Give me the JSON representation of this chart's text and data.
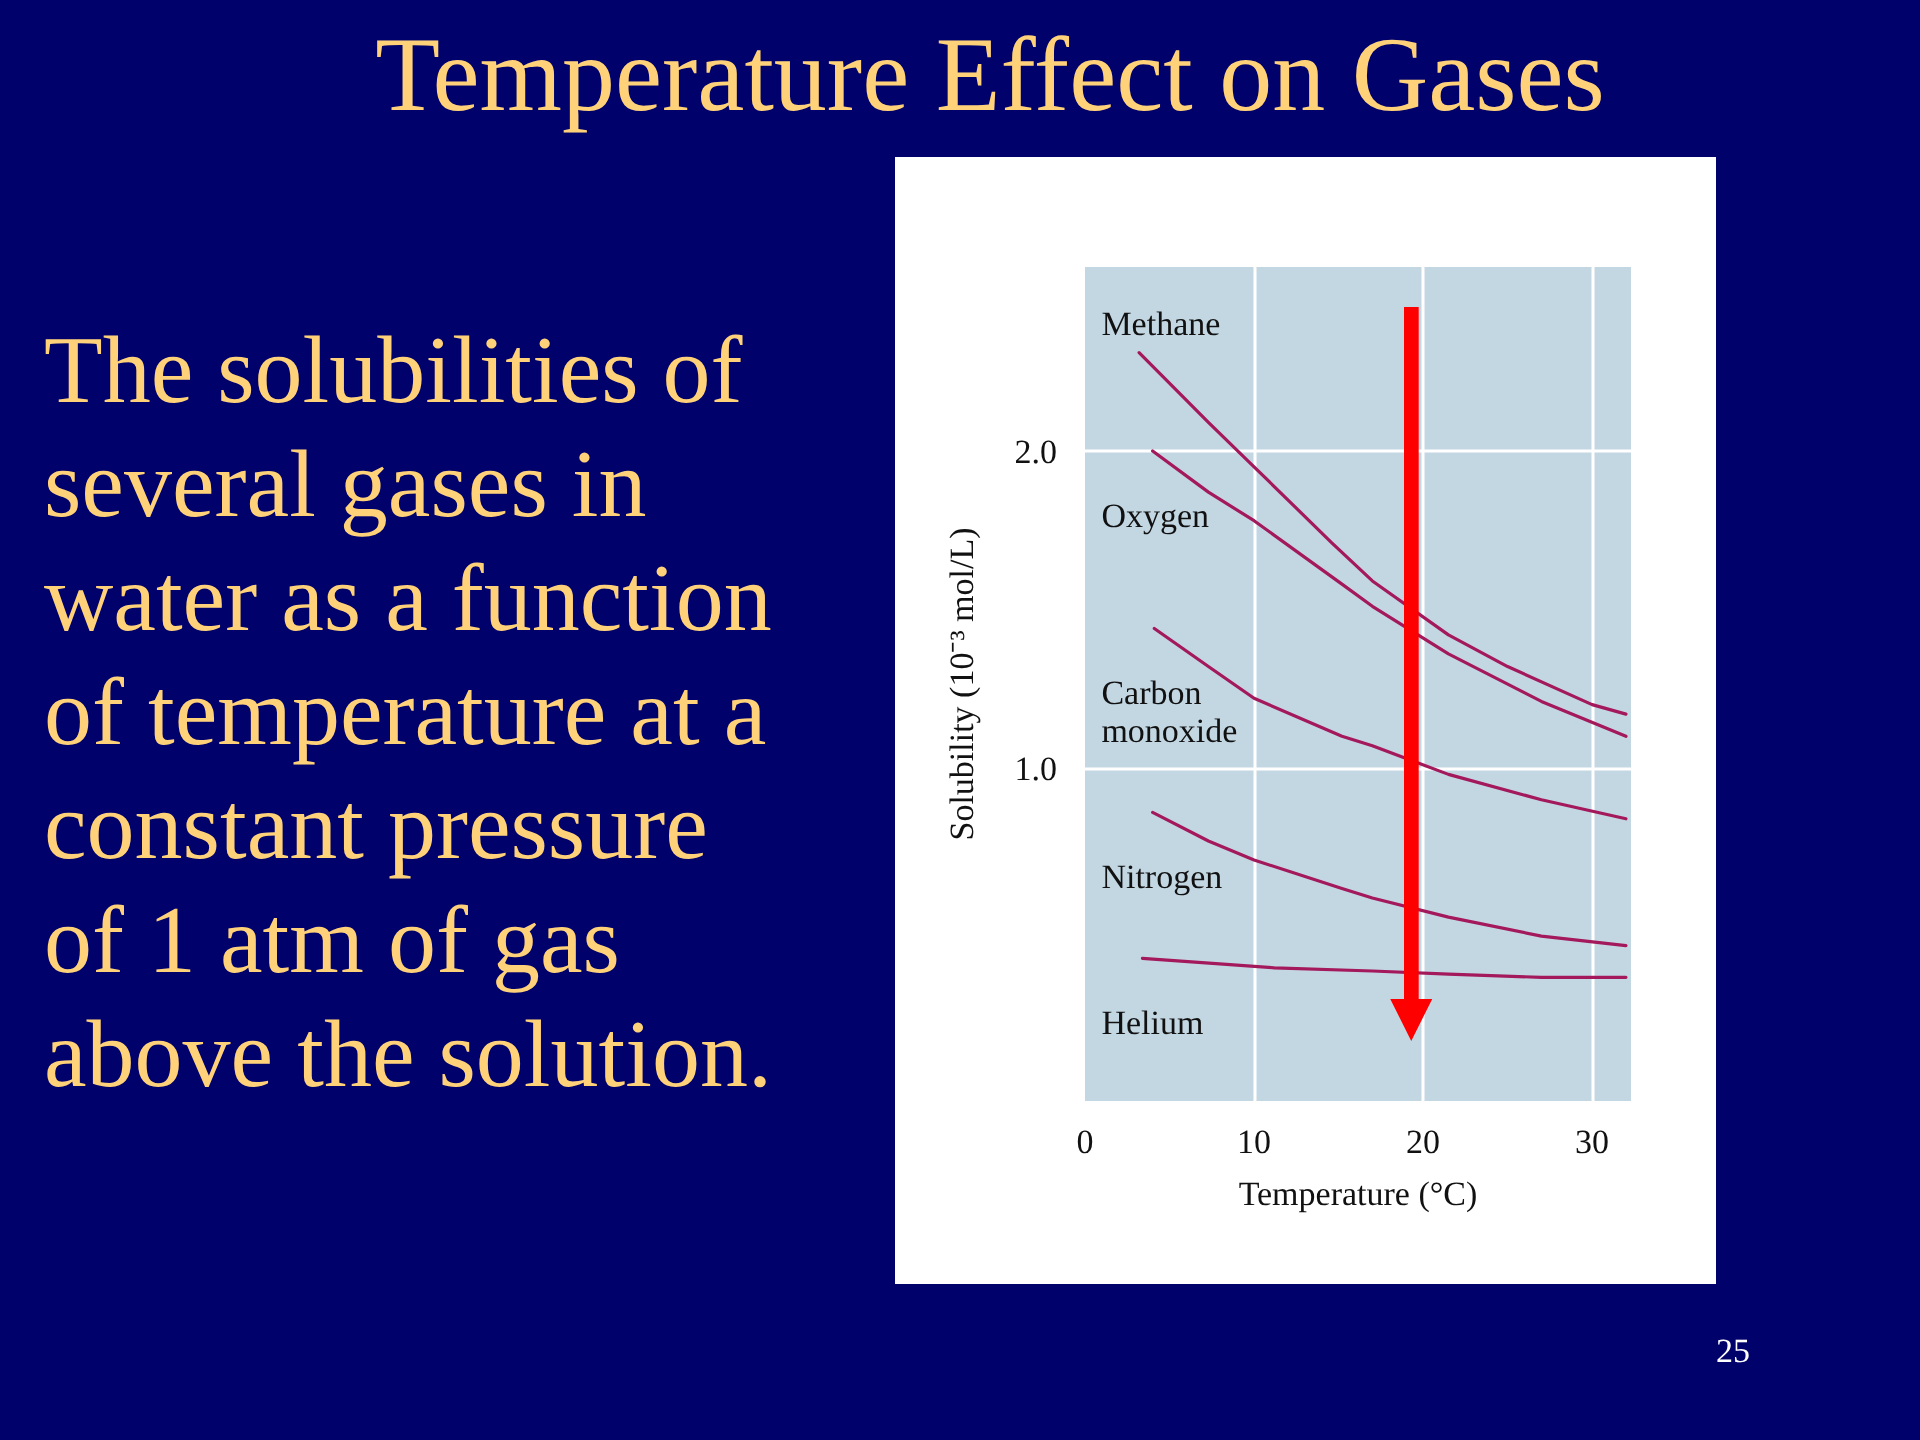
{
  "chart_data": {
    "type": "line",
    "title": "Temperature Effect on Gases",
    "xlabel": "Temperature (°C)",
    "ylabel": "Solubility (10⁻³ mol/L)",
    "annotations": [
      "The solubilities of several gases in water as a function of temperature at a constant pressure of 1 atm of gas above the solution.",
      "25"
    ],
    "xlim": [
      0,
      32.3
    ],
    "ylim": [
      -0.05,
      2.58
    ],
    "xticks": [
      0,
      10,
      20,
      30
    ],
    "yticks": [
      {
        "value": 1,
        "label": "1.0"
      },
      {
        "value": 2,
        "label": "2.0"
      }
    ],
    "grid": true,
    "series": [
      {
        "name": "Methane",
        "color": "#a3195b",
        "x": [
          3.2,
          7.3,
          10.0,
          14.6,
          17.0,
          21.5,
          25.0,
          30.0,
          32.0
        ],
        "values": [
          2.31,
          2.09,
          1.95,
          1.71,
          1.59,
          1.42,
          1.32,
          1.2,
          1.17
        ]
      },
      {
        "name": "Oxygen",
        "color": "#a3195b",
        "x": [
          4.0,
          7.3,
          10.0,
          15.2,
          17.0,
          21.5,
          27.0,
          32.0
        ],
        "values": [
          2.0,
          1.87,
          1.78,
          1.58,
          1.51,
          1.36,
          1.21,
          1.1
        ]
      },
      {
        "name": "Carbon monoxide",
        "color": "#a3195b",
        "x": [
          4.1,
          7.3,
          10.0,
          15.2,
          17.0,
          21.5,
          27.0,
          32.0
        ],
        "values": [
          1.44,
          1.32,
          1.22,
          1.1,
          1.07,
          0.98,
          0.9,
          0.84
        ]
      },
      {
        "name": "Nitrogen",
        "color": "#a3195b",
        "x": [
          4.0,
          7.3,
          10.0,
          15.2,
          17.0,
          21.5,
          27.0,
          32.0
        ],
        "values": [
          0.86,
          0.77,
          0.71,
          0.62,
          0.59,
          0.53,
          0.47,
          0.44
        ]
      },
      {
        "name": "Helium",
        "color": "#a3195b",
        "x": [
          3.4,
          11.2,
          17.0,
          21.5,
          27.0,
          32.0
        ],
        "values": [
          0.4,
          0.37,
          0.36,
          0.35,
          0.34,
          0.34
        ]
      }
    ],
    "ref_lines": [
      {
        "axis": "x",
        "value": 19.3,
        "color": "#ff0000"
      }
    ]
  }
}
